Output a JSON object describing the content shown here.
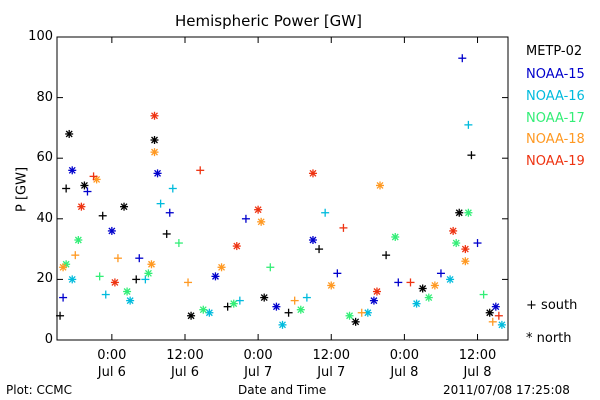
{
  "chart_data": {
    "type": "scatter",
    "title": "Hemispheric Power [GW]",
    "ylabel": "P [GW]",
    "xlabel": "Date and Time",
    "ylim": [
      0,
      100
    ],
    "yticks": [
      0,
      20,
      40,
      60,
      80,
      100
    ],
    "xlim": [
      "2011-07-05T15:00",
      "2011-07-08T17:00"
    ],
    "xticks": [
      {
        "x": "2011-07-06T00:00",
        "time": "0:00",
        "date": "Jul 6"
      },
      {
        "x": "2011-07-06T12:00",
        "time": "12:00",
        "date": "Jul 6"
      },
      {
        "x": "2011-07-07T00:00",
        "time": "0:00",
        "date": "Jul 7"
      },
      {
        "x": "2011-07-07T12:00",
        "time": "12:00",
        "date": "Jul 7"
      },
      {
        "x": "2011-07-08T00:00",
        "time": "0:00",
        "date": "Jul 8"
      },
      {
        "x": "2011-07-08T12:00",
        "time": "12:00",
        "date": "Jul 8"
      }
    ],
    "legend_position": "right",
    "marker_legend": [
      {
        "symbol": "+",
        "label": "south"
      },
      {
        "symbol": "*",
        "label": "north"
      }
    ],
    "series": [
      {
        "name": "METP-02",
        "color": "#000000",
        "points": [
          {
            "x": "2011-07-05T15:30",
            "y": 8,
            "h": "south"
          },
          {
            "x": "2011-07-05T17:00",
            "y": 68,
            "h": "north"
          },
          {
            "x": "2011-07-05T16:30",
            "y": 50,
            "h": "south"
          },
          {
            "x": "2011-07-05T19:30",
            "y": 51,
            "h": "north"
          },
          {
            "x": "2011-07-05T22:30",
            "y": 41,
            "h": "south"
          },
          {
            "x": "2011-07-06T02:00",
            "y": 44,
            "h": "north"
          },
          {
            "x": "2011-07-06T04:00",
            "y": 20,
            "h": "south"
          },
          {
            "x": "2011-07-06T07:00",
            "y": 66,
            "h": "north"
          },
          {
            "x": "2011-07-06T09:00",
            "y": 35,
            "h": "south"
          },
          {
            "x": "2011-07-06T13:00",
            "y": 8,
            "h": "north"
          },
          {
            "x": "2011-07-06T19:00",
            "y": 11,
            "h": "south"
          },
          {
            "x": "2011-07-07T01:00",
            "y": 14,
            "h": "north"
          },
          {
            "x": "2011-07-07T05:00",
            "y": 9,
            "h": "south"
          },
          {
            "x": "2011-07-07T10:00",
            "y": 30,
            "h": "south"
          },
          {
            "x": "2011-07-07T16:00",
            "y": 6,
            "h": "north"
          },
          {
            "x": "2011-07-07T21:00",
            "y": 28,
            "h": "south"
          },
          {
            "x": "2011-07-08T03:00",
            "y": 17,
            "h": "north"
          },
          {
            "x": "2011-07-08T09:00",
            "y": 42,
            "h": "north"
          },
          {
            "x": "2011-07-08T11:00",
            "y": 61,
            "h": "south"
          },
          {
            "x": "2011-07-08T14:00",
            "y": 9,
            "h": "north"
          }
        ]
      },
      {
        "name": "NOAA-15",
        "color": "#0000cc",
        "points": [
          {
            "x": "2011-07-05T16:00",
            "y": 14,
            "h": "south"
          },
          {
            "x": "2011-07-05T17:30",
            "y": 56,
            "h": "north"
          },
          {
            "x": "2011-07-05T20:00",
            "y": 49,
            "h": "south"
          },
          {
            "x": "2011-07-06T00:00",
            "y": 36,
            "h": "north"
          },
          {
            "x": "2011-07-06T04:30",
            "y": 27,
            "h": "south"
          },
          {
            "x": "2011-07-06T07:30",
            "y": 55,
            "h": "north"
          },
          {
            "x": "2011-07-06T09:30",
            "y": 42,
            "h": "south"
          },
          {
            "x": "2011-07-06T17:00",
            "y": 21,
            "h": "north"
          },
          {
            "x": "2011-07-06T22:00",
            "y": 40,
            "h": "south"
          },
          {
            "x": "2011-07-07T03:00",
            "y": 11,
            "h": "north"
          },
          {
            "x": "2011-07-07T09:00",
            "y": 33,
            "h": "north"
          },
          {
            "x": "2011-07-07T13:00",
            "y": 22,
            "h": "south"
          },
          {
            "x": "2011-07-07T19:00",
            "y": 13,
            "h": "north"
          },
          {
            "x": "2011-07-07T23:00",
            "y": 19,
            "h": "south"
          },
          {
            "x": "2011-07-08T06:00",
            "y": 22,
            "h": "south"
          },
          {
            "x": "2011-07-08T09:30",
            "y": 93,
            "h": "south"
          },
          {
            "x": "2011-07-08T12:00",
            "y": 32,
            "h": "south"
          },
          {
            "x": "2011-07-08T15:00",
            "y": 11,
            "h": "north"
          }
        ]
      },
      {
        "name": "NOAA-16",
        "color": "#00bbdd",
        "points": [
          {
            "x": "2011-07-05T17:30",
            "y": 20,
            "h": "north"
          },
          {
            "x": "2011-07-05T23:00",
            "y": 15,
            "h": "south"
          },
          {
            "x": "2011-07-06T03:00",
            "y": 13,
            "h": "north"
          },
          {
            "x": "2011-07-06T05:30",
            "y": 20,
            "h": "south"
          },
          {
            "x": "2011-07-06T08:00",
            "y": 45,
            "h": "south"
          },
          {
            "x": "2011-07-06T10:00",
            "y": 50,
            "h": "south"
          },
          {
            "x": "2011-07-06T16:00",
            "y": 9,
            "h": "north"
          },
          {
            "x": "2011-07-06T21:00",
            "y": 13,
            "h": "south"
          },
          {
            "x": "2011-07-07T04:00",
            "y": 5,
            "h": "north"
          },
          {
            "x": "2011-07-07T08:00",
            "y": 14,
            "h": "south"
          },
          {
            "x": "2011-07-07T11:00",
            "y": 42,
            "h": "south"
          },
          {
            "x": "2011-07-07T18:00",
            "y": 9,
            "h": "north"
          },
          {
            "x": "2011-07-08T02:00",
            "y": 12,
            "h": "north"
          },
          {
            "x": "2011-07-08T07:30",
            "y": 20,
            "h": "north"
          },
          {
            "x": "2011-07-08T10:30",
            "y": 71,
            "h": "south"
          },
          {
            "x": "2011-07-08T16:00",
            "y": 5,
            "h": "north"
          }
        ]
      },
      {
        "name": "NOAA-17",
        "color": "#33ee77",
        "points": [
          {
            "x": "2011-07-05T16:30",
            "y": 25,
            "h": "north"
          },
          {
            "x": "2011-07-05T18:30",
            "y": 33,
            "h": "north"
          },
          {
            "x": "2011-07-05T22:00",
            "y": 21,
            "h": "south"
          },
          {
            "x": "2011-07-06T02:30",
            "y": 16,
            "h": "north"
          },
          {
            "x": "2011-07-06T06:00",
            "y": 22,
            "h": "north"
          },
          {
            "x": "2011-07-06T11:00",
            "y": 32,
            "h": "south"
          },
          {
            "x": "2011-07-06T15:00",
            "y": 10,
            "h": "north"
          },
          {
            "x": "2011-07-06T20:00",
            "y": 12,
            "h": "north"
          },
          {
            "x": "2011-07-07T02:00",
            "y": 24,
            "h": "south"
          },
          {
            "x": "2011-07-07T07:00",
            "y": 10,
            "h": "north"
          },
          {
            "x": "2011-07-07T15:00",
            "y": 8,
            "h": "north"
          },
          {
            "x": "2011-07-07T22:30",
            "y": 34,
            "h": "north"
          },
          {
            "x": "2011-07-08T04:00",
            "y": 14,
            "h": "north"
          },
          {
            "x": "2011-07-08T08:30",
            "y": 32,
            "h": "north"
          },
          {
            "x": "2011-07-08T10:30",
            "y": 42,
            "h": "north"
          },
          {
            "x": "2011-07-08T13:00",
            "y": 15,
            "h": "south"
          }
        ]
      },
      {
        "name": "NOAA-18",
        "color": "#ff9922",
        "points": [
          {
            "x": "2011-07-05T16:00",
            "y": 24,
            "h": "north"
          },
          {
            "x": "2011-07-05T18:00",
            "y": 28,
            "h": "south"
          },
          {
            "x": "2011-07-05T21:30",
            "y": 53,
            "h": "north"
          },
          {
            "x": "2011-07-06T01:00",
            "y": 27,
            "h": "south"
          },
          {
            "x": "2011-07-06T06:30",
            "y": 25,
            "h": "north"
          },
          {
            "x": "2011-07-06T07:00",
            "y": 62,
            "h": "north"
          },
          {
            "x": "2011-07-06T12:30",
            "y": 19,
            "h": "south"
          },
          {
            "x": "2011-07-06T18:00",
            "y": 24,
            "h": "north"
          },
          {
            "x": "2011-07-07T00:30",
            "y": 39,
            "h": "north"
          },
          {
            "x": "2011-07-07T06:00",
            "y": 13,
            "h": "south"
          },
          {
            "x": "2011-07-07T12:00",
            "y": 18,
            "h": "north"
          },
          {
            "x": "2011-07-07T17:00",
            "y": 9,
            "h": "south"
          },
          {
            "x": "2011-07-07T20:00",
            "y": 51,
            "h": "north"
          },
          {
            "x": "2011-07-08T05:00",
            "y": 18,
            "h": "north"
          },
          {
            "x": "2011-07-08T10:00",
            "y": 26,
            "h": "north"
          },
          {
            "x": "2011-07-08T14:30",
            "y": 6,
            "h": "south"
          }
        ]
      },
      {
        "name": "NOAA-19",
        "color": "#ee3311",
        "points": [
          {
            "x": "2011-07-05T19:00",
            "y": 44,
            "h": "north"
          },
          {
            "x": "2011-07-05T21:00",
            "y": 54,
            "h": "south"
          },
          {
            "x": "2011-07-06T00:30",
            "y": 19,
            "h": "north"
          },
          {
            "x": "2011-07-06T07:00",
            "y": 74,
            "h": "north"
          },
          {
            "x": "2011-07-06T14:30",
            "y": 56,
            "h": "south"
          },
          {
            "x": "2011-07-06T20:30",
            "y": 31,
            "h": "north"
          },
          {
            "x": "2011-07-07T00:00",
            "y": 43,
            "h": "north"
          },
          {
            "x": "2011-07-07T09:00",
            "y": 55,
            "h": "north"
          },
          {
            "x": "2011-07-07T14:00",
            "y": 37,
            "h": "south"
          },
          {
            "x": "2011-07-07T19:30",
            "y": 16,
            "h": "north"
          },
          {
            "x": "2011-07-08T01:00",
            "y": 19,
            "h": "south"
          },
          {
            "x": "2011-07-08T08:00",
            "y": 36,
            "h": "north"
          },
          {
            "x": "2011-07-08T10:00",
            "y": 30,
            "h": "north"
          },
          {
            "x": "2011-07-08T15:30",
            "y": 8,
            "h": "south"
          }
        ]
      }
    ]
  },
  "footer": {
    "plot_credit": "Plot: CCMC",
    "timestamp": "2011/07/08 17:25:08"
  }
}
